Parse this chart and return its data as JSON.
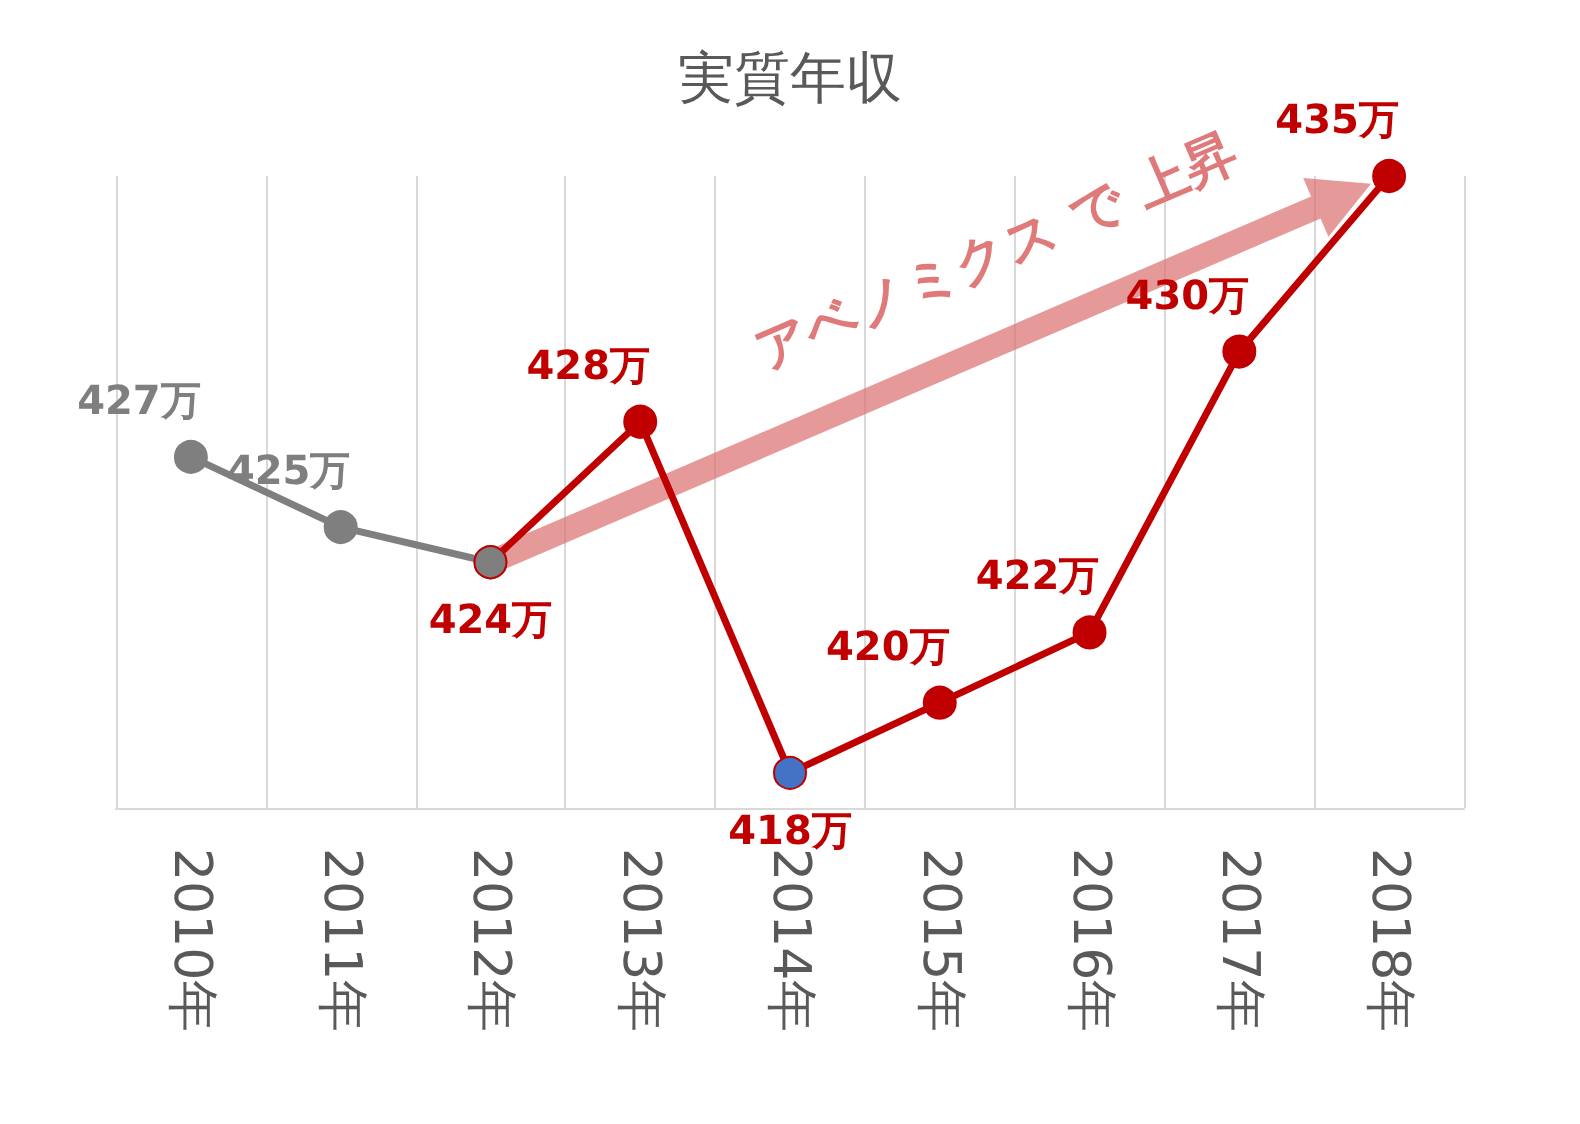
{
  "chart_data": {
    "type": "line",
    "title": "実質年収",
    "categories": [
      "2010年",
      "2011年",
      "2012年",
      "2013年",
      "2014年",
      "2015年",
      "2016年",
      "2017年",
      "2018年"
    ],
    "series": [
      {
        "color": "#7f7f7f",
        "values": [
          427,
          425,
          424,
          null,
          null,
          null,
          null,
          null,
          null
        ],
        "value_labels": [
          "427万",
          "425万",
          null,
          null,
          null,
          null,
          null,
          null,
          null
        ]
      },
      {
        "color": "#c00000",
        "colors": [
          "#c00000",
          "#c00000",
          "#7f7f7f",
          "#c00000",
          "#4472c4",
          "#c00000",
          "#c00000",
          "#c00000",
          "#c00000"
        ],
        "values": [
          null,
          null,
          424,
          428,
          418,
          420,
          422,
          430,
          435
        ],
        "value_labels": [
          null,
          null,
          "424万",
          "428万",
          "418万",
          "420万",
          "422万",
          "430万",
          "435万"
        ]
      }
    ],
    "annotations": [
      "アベノミクス で 上昇"
    ],
    "tick_labels": "x",
    "grid": "x",
    "marker": "circle",
    "line_style": "solid"
  }
}
